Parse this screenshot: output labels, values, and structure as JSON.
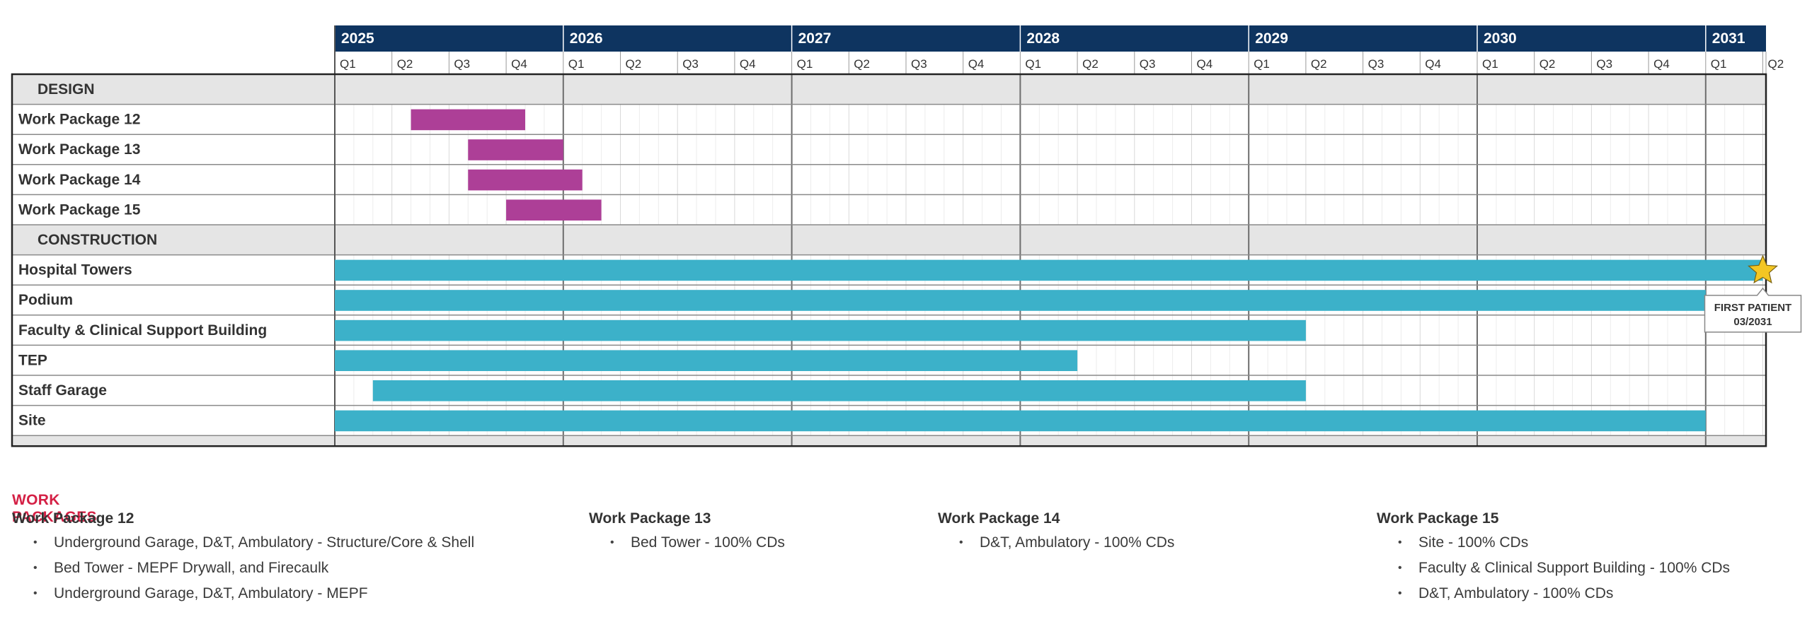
{
  "colors": {
    "header_bg": "#0e3460",
    "header_text": "#ffffff",
    "design_bar": "#ad3f97",
    "construction_bar": "#3cb1c9",
    "section_bg": "#e5e5e5",
    "milestone_star": "#f3c623",
    "wp_heading": "#d42045"
  },
  "chart_data": {
    "type": "gantt",
    "years": [
      "2025",
      "2026",
      "2027",
      "2028",
      "2029",
      "2030",
      "2031"
    ],
    "quarters": [
      "Q1",
      "Q2",
      "Q3",
      "Q4"
    ],
    "axis_range": [
      "2025-01",
      "2031-03"
    ],
    "sections": [
      {
        "name": "DESIGN",
        "tasks": [
          {
            "name": "Work Package 12",
            "start": "2025-05",
            "end": "2025-10"
          },
          {
            "name": "Work Package 13",
            "start": "2025-08",
            "end": "2025-12"
          },
          {
            "name": "Work Package 14",
            "start": "2025-08",
            "end": "2026-01"
          },
          {
            "name": "Work Package 15",
            "start": "2025-10",
            "end": "2026-02"
          }
        ]
      },
      {
        "name": "CONSTRUCTION",
        "tasks": [
          {
            "name": "Hospital Towers",
            "start": "2025-01",
            "end": "2031-03"
          },
          {
            "name": "Podium",
            "start": "2025-01",
            "end": "2030-12"
          },
          {
            "name": "Faculty & Clinical Support Building",
            "start": "2025-01",
            "end": "2029-03"
          },
          {
            "name": "TEP",
            "start": "2025-01",
            "end": "2028-03"
          },
          {
            "name": "Staff Garage",
            "start": "2025-03",
            "end": "2029-03"
          },
          {
            "name": "Site",
            "start": "2025-01",
            "end": "2030-12"
          }
        ]
      }
    ],
    "milestones": [
      {
        "label": "FIRST PATIENT",
        "date_label": "03/2031",
        "date": "2031-03"
      }
    ]
  },
  "work_packages": {
    "heading": "WORK PACKAGES",
    "columns": [
      {
        "title": "Work Package 12",
        "items": [
          "Underground Garage, D&T, Ambulatory - Structure/Core & Shell",
          "Bed Tower - MEPF Drywall, and Firecaulk",
          "Underground Garage, D&T, Ambulatory - MEPF"
        ]
      },
      {
        "title": "Work Package 13",
        "items": [
          "Bed Tower - 100% CDs"
        ]
      },
      {
        "title": "Work Package 14",
        "items": [
          "D&T, Ambulatory - 100% CDs"
        ]
      },
      {
        "title": "Work Package 15",
        "items": [
          "Site - 100% CDs",
          "Faculty & Clinical Support Building - 100% CDs",
          "D&T, Ambulatory - 100% CDs"
        ]
      }
    ]
  }
}
